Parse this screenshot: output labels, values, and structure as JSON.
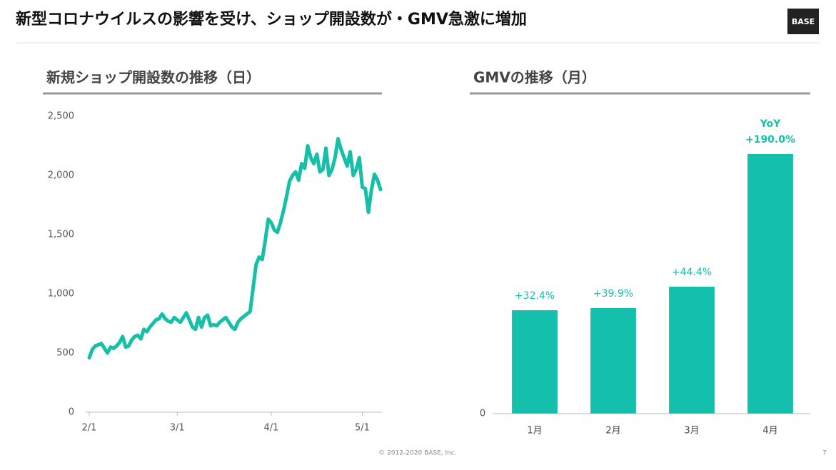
{
  "header": {
    "title": "新型コロナウイルスの影響を受け、ショップ開設数が・GMV急激に増加",
    "logo": "BASE"
  },
  "footer": {
    "copyright": "© 2012-2020 BASE, Inc.",
    "page": "7"
  },
  "chart_data": [
    {
      "type": "line",
      "title": "新規ショップ開設数の推移（日）",
      "color": "#16bfa8",
      "categories": [
        "2/1",
        null,
        null,
        null,
        null,
        null,
        null,
        null,
        null,
        null,
        null,
        null,
        null,
        null,
        null,
        null,
        null,
        null,
        null,
        null,
        null,
        null,
        null,
        null,
        null,
        null,
        null,
        null,
        null,
        "3/1",
        null,
        null,
        null,
        null,
        null,
        null,
        null,
        null,
        null,
        null,
        null,
        null,
        null,
        null,
        null,
        null,
        null,
        null,
        null,
        null,
        null,
        null,
        null,
        null,
        null,
        null,
        null,
        null,
        null,
        null,
        "4/1",
        null,
        null,
        null,
        null,
        null,
        null,
        null,
        null,
        null,
        null,
        null,
        null,
        null,
        null,
        null,
        null,
        null,
        null,
        null,
        null,
        null,
        null,
        null,
        null,
        null,
        null,
        null,
        null,
        null,
        "5/1",
        null,
        null,
        null,
        null,
        null,
        null
      ],
      "values": [
        460,
        530,
        560,
        570,
        580,
        540,
        500,
        550,
        540,
        560,
        590,
        640,
        550,
        560,
        610,
        640,
        650,
        620,
        700,
        680,
        720,
        750,
        780,
        790,
        830,
        790,
        770,
        760,
        800,
        780,
        760,
        800,
        840,
        780,
        720,
        700,
        800,
        720,
        800,
        820,
        730,
        740,
        730,
        760,
        780,
        800,
        760,
        720,
        700,
        760,
        790,
        810,
        830,
        850,
        1050,
        1250,
        1310,
        1290,
        1450,
        1630,
        1600,
        1540,
        1520,
        1600,
        1700,
        1820,
        1950,
        2000,
        2030,
        1960,
        2100,
        2060,
        2250,
        2150,
        2100,
        2180,
        2030,
        2050,
        2230,
        2000,
        2050,
        2150,
        2310,
        2220,
        2150,
        2080,
        2200,
        2000,
        2050,
        2150,
        1900,
        1890,
        1690,
        1880,
        2010,
        1960,
        1880
      ],
      "ylim": [
        0,
        2500
      ],
      "yticks": [
        0,
        500,
        {
          "value": 1000,
          "label": "1,000"
        },
        {
          "value": 1500,
          "label": "1,500"
        },
        {
          "value": 2000,
          "label": "2,000"
        },
        {
          "value": 2500,
          "label": "2,500"
        }
      ]
    },
    {
      "type": "bar",
      "title": "GMVの推移（月）",
      "color": "#14bfac",
      "categories": [
        "1月",
        "2月",
        "3月",
        "4月"
      ],
      "values": [
        145,
        148,
        178,
        364
      ],
      "growth_labels": [
        "+32.4%",
        "+39.9%",
        "+44.4%",
        "+190.0%"
      ],
      "annotation": "YoY",
      "ylim": [
        0,
        420
      ],
      "yticks": [
        0
      ]
    }
  ]
}
